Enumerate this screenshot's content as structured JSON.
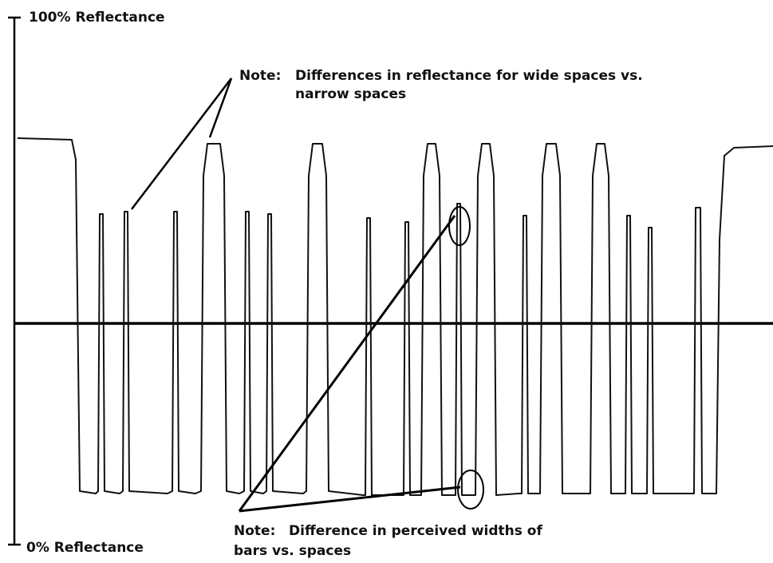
{
  "labels": {
    "top": "100% Reflectance",
    "bottom": "0% Reflectance"
  },
  "notes": [
    {
      "prefix": "Note:",
      "lines": [
        "Differences in reflectance for wide spaces vs.",
        "narrow spaces"
      ]
    },
    {
      "prefix": "Note:",
      "lines": [
        "Difference in perceived widths of",
        "bars vs. spaces"
      ]
    }
  ]
}
